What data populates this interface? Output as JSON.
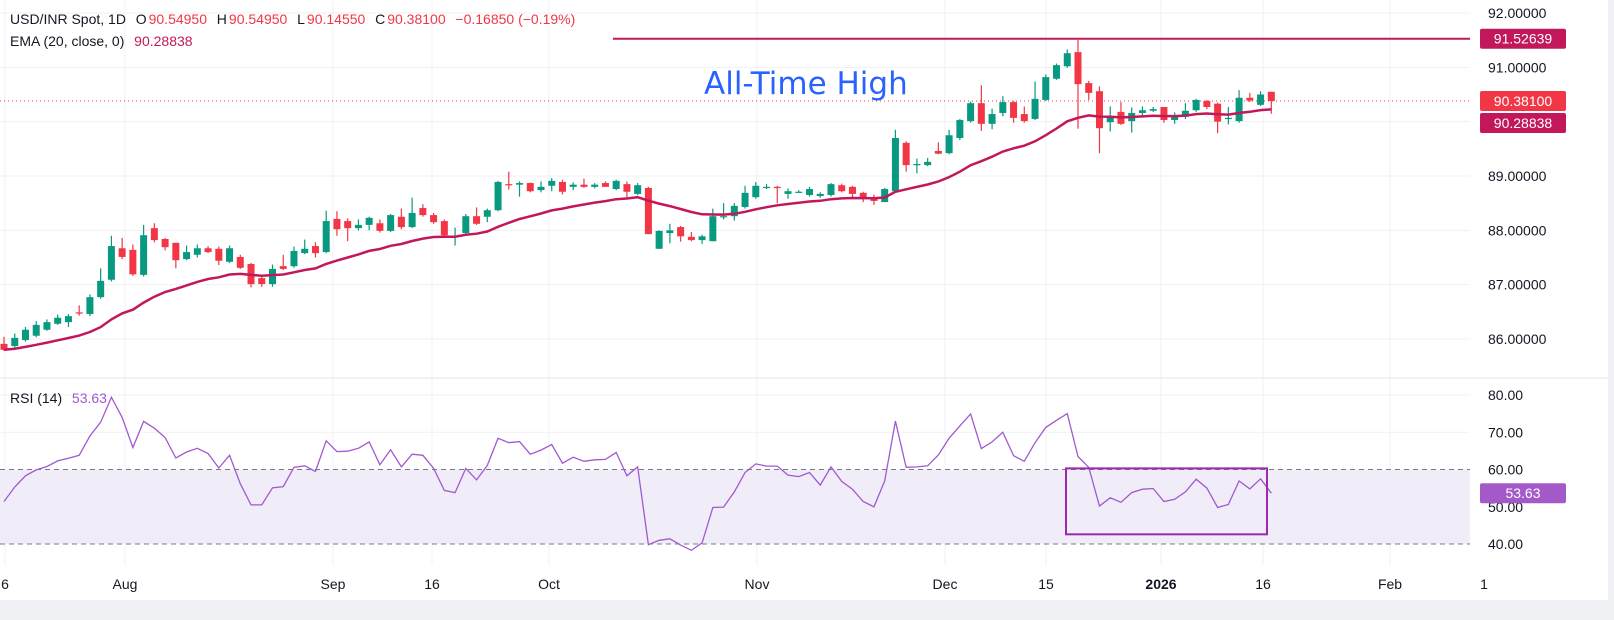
{
  "legend": {
    "symbol": "USD/INR Spot, 1D",
    "open_label": "O",
    "open": "90.54950",
    "high_label": "H",
    "high": "90.54950",
    "low_label": "L",
    "low": "90.14550",
    "close_label": "C",
    "close": "90.38100",
    "change": "−0.16850 (−0.19%)",
    "ema_label": "EMA (20, close, 0)",
    "ema_value": "90.28838",
    "rsi_label": "RSI (14)",
    "rsi_value": "53.63"
  },
  "annotation": {
    "text": "All-Time High",
    "level": 91.52639,
    "color": "#2962ff"
  },
  "price_labels": {
    "ath": "91.52639",
    "last": "90.38100",
    "ema": "90.28838",
    "rsi": "53.63"
  },
  "colors": {
    "up": "#089981",
    "down": "#f23645",
    "ema": "#c2185b",
    "rsi": "#a05ad0",
    "rsi_band": "#f0ecf8",
    "ath_line": "#c2185b",
    "box": "#9c27b0"
  },
  "chart_data": [
    {
      "type": "candlestick",
      "title": "USD/INR Spot, 1D",
      "ylim": [
        85.5,
        92.0
      ],
      "yticks": [
        "92.00000",
        "91.00000",
        "89.00000",
        "88.00000",
        "87.00000",
        "86.00000"
      ],
      "xticks": [
        "6",
        "Aug",
        "Sep",
        "16",
        "Oct",
        "Nov",
        "Dec",
        "15",
        "2026",
        "16",
        "Feb",
        "1"
      ],
      "ohlc": [
        [
          85.91,
          86.04,
          85.78,
          85.8
        ],
        [
          85.87,
          86.1,
          85.82,
          86.02
        ],
        [
          85.98,
          86.22,
          85.95,
          86.17
        ],
        [
          86.06,
          86.33,
          86.03,
          86.26
        ],
        [
          86.17,
          86.36,
          86.15,
          86.31
        ],
        [
          86.28,
          86.45,
          86.26,
          86.39
        ],
        [
          86.31,
          86.46,
          86.22,
          86.42
        ],
        [
          86.49,
          86.62,
          86.43,
          86.47
        ],
        [
          86.46,
          86.82,
          86.42,
          86.77
        ],
        [
          86.77,
          87.3,
          86.74,
          87.07
        ],
        [
          87.09,
          87.9,
          87.06,
          87.71
        ],
        [
          87.67,
          87.86,
          87.47,
          87.51
        ],
        [
          87.64,
          87.74,
          87.16,
          87.19
        ],
        [
          87.18,
          88.1,
          87.15,
          87.91
        ],
        [
          88.04,
          88.13,
          87.78,
          87.82
        ],
        [
          87.84,
          87.86,
          87.63,
          87.69
        ],
        [
          87.77,
          87.77,
          87.3,
          87.45
        ],
        [
          87.47,
          87.72,
          87.45,
          87.6
        ],
        [
          87.55,
          87.74,
          87.5,
          87.67
        ],
        [
          87.67,
          87.71,
          87.58,
          87.6
        ],
        [
          87.66,
          87.7,
          87.36,
          87.44
        ],
        [
          87.42,
          87.72,
          87.4,
          87.67
        ],
        [
          87.51,
          87.55,
          87.29,
          87.31
        ],
        [
          87.38,
          87.4,
          86.95,
          87.01
        ],
        [
          87.12,
          87.14,
          86.96,
          87.01
        ],
        [
          87.01,
          87.37,
          86.96,
          87.29
        ],
        [
          87.34,
          87.55,
          87.27,
          87.29
        ],
        [
          87.34,
          87.7,
          87.31,
          87.62
        ],
        [
          87.58,
          87.83,
          87.56,
          87.66
        ],
        [
          87.71,
          87.78,
          87.5,
          87.58
        ],
        [
          87.6,
          88.36,
          87.58,
          88.17
        ],
        [
          88.21,
          88.35,
          87.9,
          88.02
        ],
        [
          88.17,
          88.22,
          87.8,
          88.04
        ],
        [
          88.04,
          88.2,
          88.0,
          88.1
        ],
        [
          88.1,
          88.25,
          88.0,
          88.23
        ],
        [
          88.13,
          88.2,
          87.96,
          87.99
        ],
        [
          87.99,
          88.3,
          87.97,
          88.28
        ],
        [
          88.25,
          88.4,
          88.02,
          88.06
        ],
        [
          88.06,
          88.6,
          88.04,
          88.32
        ],
        [
          88.41,
          88.48,
          88.25,
          88.28
        ],
        [
          88.28,
          88.32,
          88.12,
          88.15
        ],
        [
          88.17,
          88.2,
          87.88,
          87.91
        ],
        [
          87.88,
          88.05,
          87.72,
          87.9
        ],
        [
          87.95,
          88.3,
          87.9,
          88.26
        ],
        [
          88.26,
          88.42,
          88.1,
          88.12
        ],
        [
          88.25,
          88.4,
          88.15,
          88.37
        ],
        [
          88.37,
          88.91,
          88.35,
          88.89
        ],
        [
          88.85,
          89.08,
          88.75,
          88.84
        ],
        [
          88.84,
          88.9,
          88.62,
          88.87
        ],
        [
          88.87,
          88.88,
          88.7,
          88.72
        ],
        [
          88.74,
          88.9,
          88.7,
          88.8
        ],
        [
          88.82,
          88.96,
          88.72,
          88.91
        ],
        [
          88.89,
          88.93,
          88.66,
          88.71
        ],
        [
          88.8,
          88.88,
          88.74,
          88.84
        ],
        [
          88.84,
          88.95,
          88.78,
          88.8
        ],
        [
          88.8,
          88.87,
          88.77,
          88.84
        ],
        [
          88.87,
          88.9,
          88.82,
          88.8
        ],
        [
          88.76,
          88.93,
          88.74,
          88.91
        ],
        [
          88.85,
          88.9,
          88.6,
          88.71
        ],
        [
          88.67,
          88.87,
          88.65,
          88.83
        ],
        [
          88.78,
          88.8,
          87.93,
          87.93
        ],
        [
          87.66,
          88.0,
          87.66,
          87.99
        ],
        [
          87.95,
          88.12,
          87.76,
          88.0
        ],
        [
          88.06,
          88.08,
          87.79,
          87.89
        ],
        [
          87.88,
          87.97,
          87.8,
          87.82
        ],
        [
          87.82,
          87.92,
          87.75,
          87.89
        ],
        [
          87.8,
          88.4,
          87.8,
          88.26
        ],
        [
          88.25,
          88.5,
          88.2,
          88.26
        ],
        [
          88.26,
          88.5,
          88.18,
          88.45
        ],
        [
          88.43,
          88.82,
          88.4,
          88.69
        ],
        [
          88.61,
          88.89,
          88.58,
          88.82
        ],
        [
          88.8,
          88.85,
          88.76,
          88.8
        ],
        [
          88.8,
          88.82,
          88.5,
          88.79
        ],
        [
          88.67,
          88.77,
          88.58,
          88.72
        ],
        [
          88.7,
          88.74,
          88.7,
          88.71
        ],
        [
          88.65,
          88.8,
          88.62,
          88.76
        ],
        [
          88.63,
          88.7,
          88.6,
          88.67
        ],
        [
          88.65,
          88.87,
          88.62,
          88.85
        ],
        [
          88.83,
          88.86,
          88.7,
          88.72
        ],
        [
          88.8,
          88.82,
          88.6,
          88.67
        ],
        [
          88.69,
          88.71,
          88.52,
          88.58
        ],
        [
          88.61,
          88.66,
          88.47,
          88.54
        ],
        [
          88.52,
          88.78,
          88.52,
          88.76
        ],
        [
          88.72,
          89.85,
          88.7,
          89.7
        ],
        [
          89.61,
          89.64,
          89.08,
          89.2
        ],
        [
          89.2,
          89.32,
          89.05,
          89.22
        ],
        [
          89.2,
          89.33,
          89.18,
          89.26
        ],
        [
          89.46,
          89.62,
          89.4,
          89.41
        ],
        [
          89.42,
          89.85,
          89.4,
          89.75
        ],
        [
          89.7,
          90.05,
          89.66,
          90.03
        ],
        [
          90.01,
          90.37,
          89.98,
          90.34
        ],
        [
          90.34,
          90.67,
          89.83,
          89.96
        ],
        [
          89.96,
          90.24,
          89.86,
          90.14
        ],
        [
          90.16,
          90.47,
          90.1,
          90.36
        ],
        [
          90.36,
          90.38,
          89.98,
          90.07
        ],
        [
          90.14,
          90.28,
          89.98,
          90.01
        ],
        [
          90.05,
          90.74,
          90.03,
          90.42
        ],
        [
          90.4,
          90.87,
          90.38,
          90.82
        ],
        [
          90.79,
          91.07,
          90.77,
          91.04
        ],
        [
          91.02,
          91.33,
          90.99,
          91.26
        ],
        [
          91.28,
          91.53,
          89.87,
          90.69
        ],
        [
          90.71,
          90.75,
          90.4,
          90.53
        ],
        [
          90.56,
          90.65,
          89.42,
          89.88
        ],
        [
          89.99,
          90.28,
          89.82,
          90.07
        ],
        [
          90.18,
          90.36,
          89.94,
          89.96
        ],
        [
          90.01,
          90.26,
          89.8,
          90.16
        ],
        [
          90.16,
          90.28,
          90.08,
          90.21
        ],
        [
          90.2,
          90.27,
          90.18,
          90.23
        ],
        [
          90.27,
          90.27,
          89.98,
          90.03
        ],
        [
          90.03,
          90.17,
          89.96,
          90.09
        ],
        [
          90.09,
          90.34,
          90.05,
          90.2
        ],
        [
          90.21,
          90.42,
          90.18,
          90.4
        ],
        [
          90.38,
          90.4,
          90.23,
          90.27
        ],
        [
          90.33,
          90.35,
          89.79,
          90.0
        ],
        [
          90.07,
          90.27,
          89.95,
          90.07
        ],
        [
          90.01,
          90.58,
          89.98,
          90.44
        ],
        [
          90.44,
          90.53,
          90.36,
          90.39
        ],
        [
          90.31,
          90.56,
          90.29,
          90.5
        ],
        [
          90.5495,
          90.5495,
          90.1455,
          90.381
        ]
      ],
      "ema_period": 20,
      "ema_last": 90.28838
    },
    {
      "type": "line",
      "title": "RSI (14)",
      "ylim": [
        35,
        82
      ],
      "yticks": [
        "80.00",
        "70.00",
        "60.00",
        "50.00",
        "40.00"
      ],
      "bands": [
        40,
        60
      ],
      "values": [
        51.4,
        55.3,
        58.3,
        59.9,
        60.8,
        62.3,
        63,
        63.8,
        69,
        72.7,
        79.4,
        74,
        65.9,
        72.9,
        71.1,
        68.6,
        63.1,
        64.7,
        65.7,
        64.3,
        60.4,
        63.8,
        56.2,
        50.5,
        50.5,
        55.1,
        55.4,
        60.6,
        61,
        59.5,
        67.7,
        64.8,
        64.9,
        65.7,
        67.4,
        61.3,
        65.3,
        60.7,
        64.1,
        63.8,
        60.3,
        54.4,
        53.8,
        60.3,
        57.2,
        61.1,
        68.4,
        67.2,
        67.5,
        64.1,
        65.2,
        66.7,
        61.7,
        63.3,
        62.2,
        62.6,
        62.7,
        64.6,
        58.3,
        60.7,
        39.8,
        41,
        41.4,
        39.7,
        38.3,
        40.3,
        49.8,
        49.9,
        54,
        59.2,
        61.5,
        60.9,
        60.9,
        58.5,
        58.1,
        59.2,
        55.8,
        60.7,
        56.8,
        54.7,
        51.4,
        50,
        56.9,
        73,
        60.6,
        60.7,
        61,
        63.9,
        68.4,
        71.7,
        74.9,
        65.6,
        67.4,
        70,
        63.7,
        62.2,
        67.2,
        71.3,
        73.2,
        75,
        63.5,
        60.6,
        50.2,
        52.4,
        51.2,
        53.8,
        54.7,
        54.9,
        51.4,
        52,
        54,
        57.4,
        55,
        49.8,
        50.6,
        56.9,
        54.8,
        57.5,
        53.63
      ]
    }
  ]
}
